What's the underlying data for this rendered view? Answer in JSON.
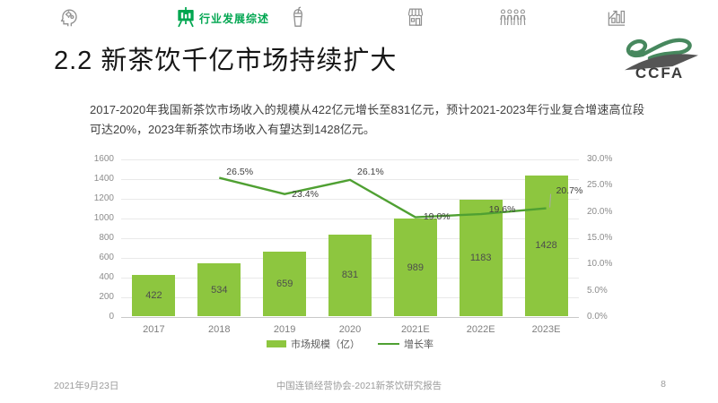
{
  "colors": {
    "bar_green": "#8DC63F",
    "line_green": "#4FA032",
    "nav_active_green": "#00A650",
    "logo_green": "#47885E"
  },
  "nav": {
    "items": [
      {
        "icon": "mind-gears-icon",
        "label": "",
        "active": false
      },
      {
        "icon": "presentation-board-icon",
        "label": "行业发展综述",
        "active": true
      },
      {
        "icon": "drink-cup-icon",
        "label": "",
        "active": false
      },
      {
        "icon": "storefront-icon",
        "label": "",
        "active": false
      },
      {
        "icon": "people-group-icon",
        "label": "",
        "active": false
      },
      {
        "icon": "growth-chart-icon",
        "label": "",
        "active": false
      }
    ]
  },
  "header": {
    "title": "2.2 新茶饮千亿市场持续扩大",
    "logo_text": "CCFA"
  },
  "intro": {
    "text": "2017-2020年我国新茶饮市场收入的规模从422亿元增长至831亿元，预计2021-2023年行业复合增速高位段可达20%，2023年新茶饮市场收入有望达到1428亿元。"
  },
  "chart_data": {
    "type": "bar",
    "subtype": "bar+line combo",
    "categories": [
      "2017",
      "2018",
      "2019",
      "2020",
      "2021E",
      "2022E",
      "2023E"
    ],
    "series": [
      {
        "name": "市场规模（亿）",
        "type": "bar",
        "axis": "left",
        "color": "#8DC63F",
        "values": [
          422,
          534,
          659,
          831,
          989,
          1183,
          1428
        ]
      },
      {
        "name": "增长率",
        "type": "line",
        "axis": "right",
        "color": "#4FA032",
        "values": [
          null,
          26.5,
          23.4,
          26.1,
          19.0,
          19.6,
          20.7
        ],
        "point_labels": [
          null,
          "26.5%",
          "23.4%",
          "26.1%",
          "19.0%",
          "19.6%",
          "20.7%"
        ]
      }
    ],
    "left_axis": {
      "min": 0,
      "max": 1600,
      "step": 200,
      "tick_labels": [
        "1600",
        "1400",
        "1200",
        "1000",
        "800",
        "600",
        "400",
        "200",
        "0"
      ]
    },
    "right_axis": {
      "min": 0,
      "max": 30,
      "step": 5,
      "tick_labels": [
        "30.0%",
        "25.0%",
        "20.0%",
        "15.0%",
        "10.0%",
        "5.0%",
        "0.0%"
      ]
    },
    "grid": true,
    "legend_position": "bottom"
  },
  "footer": {
    "date": "2021年9月23日",
    "source": "中国连锁经营协会-2021新茶饮研究报告",
    "page_number": "8"
  }
}
